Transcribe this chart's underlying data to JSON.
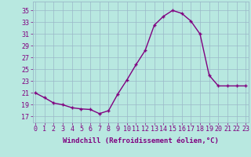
{
  "x": [
    0,
    1,
    2,
    3,
    4,
    5,
    6,
    7,
    8,
    9,
    10,
    11,
    12,
    13,
    14,
    15,
    16,
    17,
    18,
    19,
    20,
    21,
    22,
    23
  ],
  "y": [
    21.0,
    20.2,
    19.3,
    19.0,
    18.5,
    18.3,
    18.2,
    17.5,
    18.0,
    20.8,
    23.2,
    25.8,
    28.2,
    32.5,
    34.0,
    35.0,
    34.5,
    33.2,
    31.0,
    24.0,
    22.2,
    22.2,
    22.2,
    22.2
  ],
  "line_color": "#800080",
  "marker": "+",
  "background_color": "#b8e8e0",
  "grid_color": "#9ab8c8",
  "xlabel": "Windchill (Refroidissement éolien,°C)",
  "yticks": [
    17,
    19,
    21,
    23,
    25,
    27,
    29,
    31,
    33,
    35
  ],
  "xticks": [
    0,
    1,
    2,
    3,
    4,
    5,
    6,
    7,
    8,
    9,
    10,
    11,
    12,
    13,
    14,
    15,
    16,
    17,
    18,
    19,
    20,
    21,
    22,
    23
  ],
  "xlim": [
    -0.3,
    23.3
  ],
  "ylim": [
    16.0,
    36.5
  ],
  "tick_color": "#800080",
  "label_fontsize": 6.5,
  "tick_fontsize": 6.0,
  "linewidth": 1.0,
  "markersize": 3.5,
  "markeredgewidth": 1.0
}
